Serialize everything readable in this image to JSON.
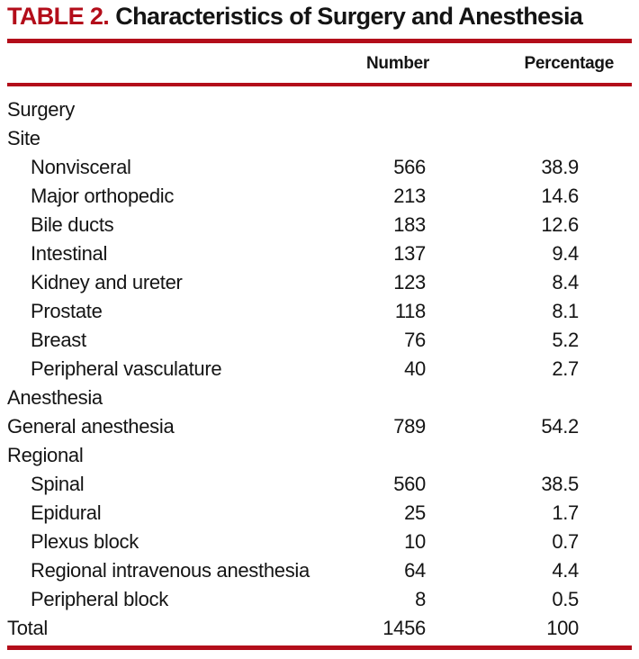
{
  "header": {
    "table_label": "TABLE 2.",
    "title": "Characteristics of Surgery and Anesthesia"
  },
  "columns": {
    "number": "Number",
    "percentage": "Percentage"
  },
  "rows": [
    {
      "label": "Surgery",
      "number": "",
      "percentage": "",
      "indent": false
    },
    {
      "label": "Site",
      "number": "",
      "percentage": "",
      "indent": false
    },
    {
      "label": "Nonvisceral",
      "number": "566",
      "percentage": "38.9",
      "indent": true
    },
    {
      "label": "Major orthopedic",
      "number": "213",
      "percentage": "14.6",
      "indent": true
    },
    {
      "label": "Bile ducts",
      "number": "183",
      "percentage": "12.6",
      "indent": true
    },
    {
      "label": "Intestinal",
      "number": "137",
      "percentage": "9.4",
      "indent": true
    },
    {
      "label": "Kidney and ureter",
      "number": "123",
      "percentage": "8.4",
      "indent": true
    },
    {
      "label": "Prostate",
      "number": "118",
      "percentage": "8.1",
      "indent": true
    },
    {
      "label": "Breast",
      "number": "76",
      "percentage": "5.2",
      "indent": true
    },
    {
      "label": "Peripheral vasculature",
      "number": "40",
      "percentage": "2.7",
      "indent": true
    },
    {
      "label": "Anesthesia",
      "number": "",
      "percentage": "",
      "indent": false
    },
    {
      "label": "General anesthesia",
      "number": "789",
      "percentage": "54.2",
      "indent": false
    },
    {
      "label": "Regional",
      "number": "",
      "percentage": "",
      "indent": false
    },
    {
      "label": "Spinal",
      "number": "560",
      "percentage": "38.5",
      "indent": true
    },
    {
      "label": "Epidural",
      "number": "25",
      "percentage": "1.7",
      "indent": true
    },
    {
      "label": "Plexus block",
      "number": "10",
      "percentage": "0.7",
      "indent": true
    },
    {
      "label": "Regional intravenous anesthesia",
      "number": "64",
      "percentage": "4.4",
      "indent": true
    },
    {
      "label": "Peripheral block",
      "number": "8",
      "percentage": "0.5",
      "indent": true
    },
    {
      "label": "Total",
      "number": "1456",
      "percentage": "100",
      "indent": false
    }
  ],
  "colors": {
    "accent_red": "#b30d1a",
    "text": "#141414"
  }
}
